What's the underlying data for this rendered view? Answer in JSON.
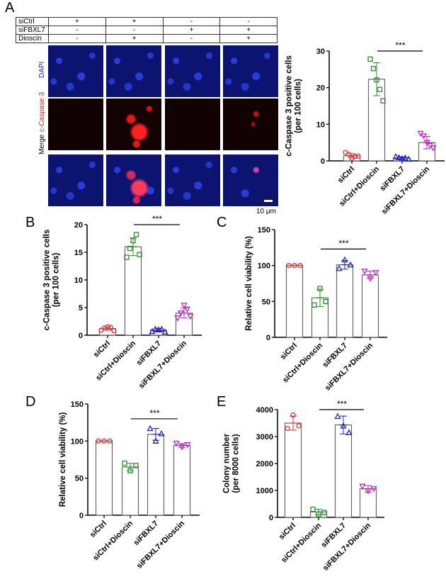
{
  "panel_letters": [
    "A",
    "B",
    "C",
    "D",
    "E"
  ],
  "conditions_table": {
    "rows": [
      {
        "label": "siCtrl",
        "values": [
          "+",
          "+",
          "-",
          "-"
        ]
      },
      {
        "label": "siFBXL7",
        "values": [
          "-",
          "-",
          "+",
          "+"
        ]
      },
      {
        "label": "Dioscin",
        "values": [
          "-",
          "+",
          "-",
          "+"
        ]
      }
    ]
  },
  "microscopy": {
    "channel_labels": {
      "dapi": "DAPI",
      "caspase": "c-Caspase 3",
      "merge": "Merge"
    },
    "scale_bar": "10 μm"
  },
  "colors": {
    "siCtrl": "#e03030",
    "siCtrl+Dioscin": "#2e8b2e",
    "siFBXL7": "#2020c0",
    "siFBXL7+Dioscin": "#c020c0"
  },
  "chart_data": [
    {
      "id": "A",
      "type": "bar",
      "categories": [
        "siCtrl",
        "siCtrl+Dioscin",
        "siFBXL7",
        "siFBXL7+Dioscin"
      ],
      "ylabel": [
        "c-Caspase 3 positive cells",
        "(per 100 cells)"
      ],
      "ylim": [
        0,
        30
      ],
      "yticks": [
        0,
        10,
        20,
        30
      ],
      "means": [
        1.4,
        22.3,
        0.8,
        5.0
      ],
      "sd": [
        0.6,
        4.5,
        0.3,
        1.7
      ],
      "points": [
        [
          2.3,
          1.8,
          0.7,
          1.2,
          1.3
        ],
        [
          27.8,
          25.2,
          22.1,
          19.5,
          16.4
        ],
        [
          1.2,
          0.9,
          0.6,
          0.8,
          0.5
        ],
        [
          7.5,
          6.8,
          5.0,
          4.2,
          3.5
        ]
      ],
      "markers": [
        "circle",
        "square",
        "triangle",
        "triangle-down"
      ],
      "significance": {
        "label": "***",
        "from": "siCtrl+Dioscin",
        "to": "siFBXL7+Dioscin"
      }
    },
    {
      "id": "B",
      "type": "bar",
      "categories": [
        "siCtrl",
        "siCtrl+Dioscin",
        "siFBXL7",
        "siFBXL7+Dioscin"
      ],
      "ylabel": [
        "c-Caspase 3 positive cells",
        "(per 100 cells)"
      ],
      "ylim": [
        0,
        20
      ],
      "yticks": [
        0,
        5,
        10,
        15,
        20
      ],
      "means": [
        1.2,
        16.0,
        0.9,
        4.0
      ],
      "sd": [
        0.3,
        1.6,
        0.3,
        0.9
      ],
      "points": [
        [
          0.9,
          1.3,
          1.5,
          1.4,
          0.8
        ],
        [
          14.1,
          15.7,
          17.1,
          18.2,
          14.6
        ],
        [
          0.7,
          1.1,
          1.0,
          1.1,
          0.6
        ],
        [
          3.1,
          4.0,
          5.4,
          4.7,
          3.4
        ]
      ],
      "markers": [
        "circle",
        "square",
        "triangle",
        "triangle-down"
      ],
      "significance": {
        "label": "***",
        "from": "siCtrl+Dioscin",
        "to": "siFBXL7+Dioscin"
      }
    },
    {
      "id": "C",
      "type": "bar",
      "categories": [
        "siCtrl",
        "siCtrl+Dioscin",
        "siFBXL7",
        "siFBXL7+Dioscin"
      ],
      "ylabel": [
        "Relative cell viability (%)"
      ],
      "ylim": [
        0,
        150
      ],
      "yticks": [
        0,
        50,
        100,
        150
      ],
      "means": [
        100,
        55,
        101,
        87
      ],
      "sd": [
        0,
        12,
        6,
        5
      ],
      "points": [
        [
          100,
          100,
          100
        ],
        [
          45,
          68,
          50
        ],
        [
          96,
          108,
          101
        ],
        [
          92,
          82,
          90
        ]
      ],
      "markers": [
        "circle",
        "square",
        "triangle",
        "triangle-down"
      ],
      "significance": {
        "label": "***",
        "from": "siCtrl+Dioscin",
        "to": "siFBXL7+Dioscin",
        "level": 123
      }
    },
    {
      "id": "D",
      "type": "bar",
      "categories": [
        "siCtrl",
        "siCtrl+Dioscin",
        "siFBXL7",
        "siFBXL7+Dioscin"
      ],
      "ylabel": [
        "Relative cell viability (%)"
      ],
      "ylim": [
        0,
        150
      ],
      "yticks": [
        0,
        50,
        100,
        150
      ],
      "means": [
        100,
        65,
        109,
        94
      ],
      "sd": [
        0,
        5,
        8,
        3
      ],
      "points": [
        [
          100,
          100,
          100
        ],
        [
          70,
          60,
          67
        ],
        [
          117,
          100,
          110
        ],
        [
          97,
          92,
          95
        ]
      ],
      "markers": [
        "circle",
        "square",
        "triangle",
        "triangle-down"
      ],
      "significance": {
        "label": "***",
        "from": "siCtrl+Dioscin",
        "to": "siFBXL7+Dioscin",
        "level": 130
      }
    },
    {
      "id": "E",
      "type": "bar",
      "categories": [
        "siCtrl",
        "siCtrl+Dioscin",
        "siFBXL7",
        "siFBXL7+Dioscin"
      ],
      "ylabel": [
        "Colony number",
        "(per 8000 cells)"
      ],
      "ylim": [
        0,
        4000
      ],
      "yticks": [
        0,
        1000,
        2000,
        3000,
        4000
      ],
      "means": [
        3500,
        200,
        3430,
        1060
      ],
      "sd": [
        260,
        100,
        330,
        120
      ],
      "points": [
        [
          3300,
          3800,
          3400
        ],
        [
          300,
          120,
          180
        ],
        [
          3750,
          3400,
          3150
        ],
        [
          1150,
          980,
          1060
        ]
      ],
      "markers": [
        "circle",
        "square",
        "triangle",
        "triangle-down"
      ],
      "significance": {
        "label": "***",
        "from": "siCtrl+Dioscin",
        "to": "siFBXL7+Dioscin",
        "level": 4000
      }
    }
  ]
}
